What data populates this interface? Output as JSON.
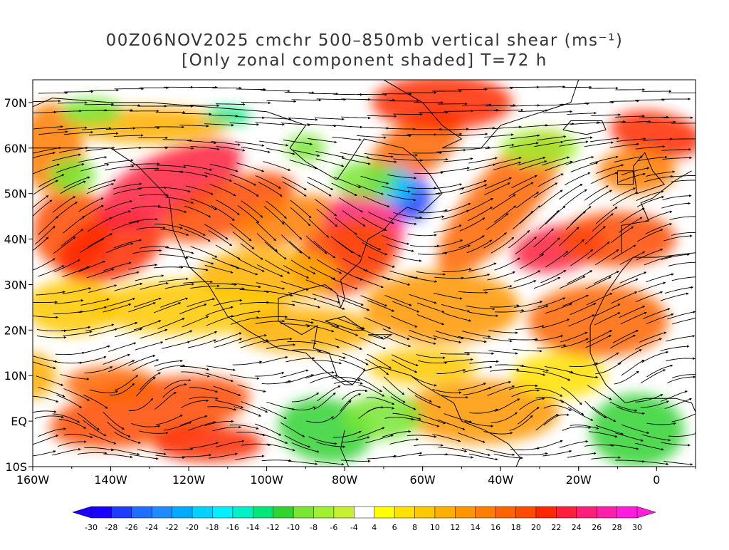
{
  "title": {
    "line1": "00Z06NOV2025 cmchr 500–850mb vertical shear (ms⁻¹)",
    "line2": "[Only zonal component shaded] T=72 h"
  },
  "map": {
    "lat_labels": [
      "70N",
      "60N",
      "50N",
      "40N",
      "30N",
      "20N",
      "10N",
      "EQ",
      "10S"
    ],
    "lon_labels": [
      "160W",
      "140W",
      "120W",
      "100W",
      "80W",
      "60W",
      "40W",
      "20W",
      "0"
    ],
    "lat_values": [
      70,
      60,
      50,
      40,
      30,
      20,
      10,
      0,
      -10
    ],
    "lon_values": [
      -160,
      -140,
      -120,
      -100,
      -80,
      -60,
      -40,
      -20,
      0
    ],
    "lon_range": [
      -160,
      10
    ],
    "lat_range": [
      -10,
      75
    ]
  },
  "colorbar": {
    "labels": [
      "-30",
      "-28",
      "-26",
      "-24",
      "-22",
      "-20",
      "-18",
      "-16",
      "-14",
      "-12",
      "-10",
      "-8",
      "-6",
      "-4",
      "4",
      "6",
      "8",
      "10",
      "12",
      "14",
      "16",
      "18",
      "20",
      "22",
      "24",
      "26",
      "28",
      "30"
    ],
    "colors": [
      "#1c00ff",
      "#1e3cff",
      "#1e6eff",
      "#1e8cff",
      "#00aaff",
      "#00d2ff",
      "#00f0ff",
      "#00f0c8",
      "#00e678",
      "#32d232",
      "#78e632",
      "#a0f032",
      "#c8f032",
      "#ffffff",
      "#ffff00",
      "#ffe100",
      "#ffc800",
      "#ffaf00",
      "#ff9600",
      "#ff7d00",
      "#ff6400",
      "#ff4b00",
      "#ff2800",
      "#ff1e3c",
      "#ff1e78",
      "#ff1eaa",
      "#ff1edc"
    ]
  }
}
